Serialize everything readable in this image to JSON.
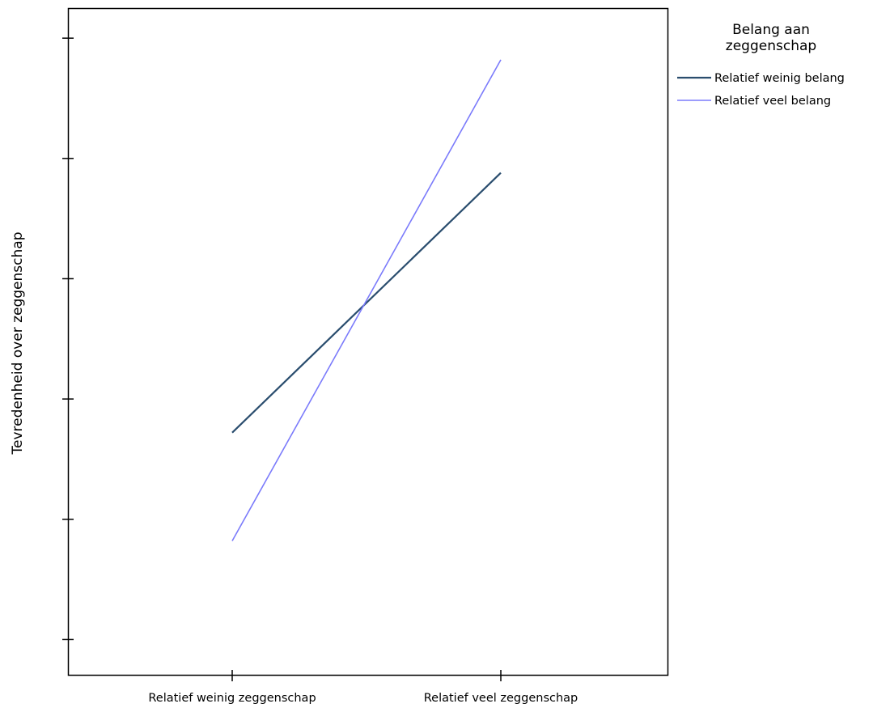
{
  "chart_data": {
    "type": "line",
    "title": "",
    "xlabel": "",
    "ylabel": "Tevredenheid over zeggenschap",
    "categories": [
      "Relatief weinig zeggenschap",
      "Relatief veel zeggenschap"
    ],
    "y_tick_labels_shown": false,
    "y_ticks": [
      1,
      2,
      3,
      4,
      5,
      6
    ],
    "ylim": [
      0.7,
      6.25
    ],
    "grid": false,
    "legend": {
      "title": "Belang aan zeggenschap",
      "title_lines": [
        "Belang aan",
        "zeggenschap"
      ],
      "placement": "right"
    },
    "series": [
      {
        "name": "Relatief weinig belang",
        "color": "#2a4d6e",
        "values": [
          2.72,
          4.88
        ]
      },
      {
        "name": "Relatief veel belang",
        "color": "#7b7bfb",
        "values": [
          1.82,
          5.82
        ]
      }
    ]
  }
}
